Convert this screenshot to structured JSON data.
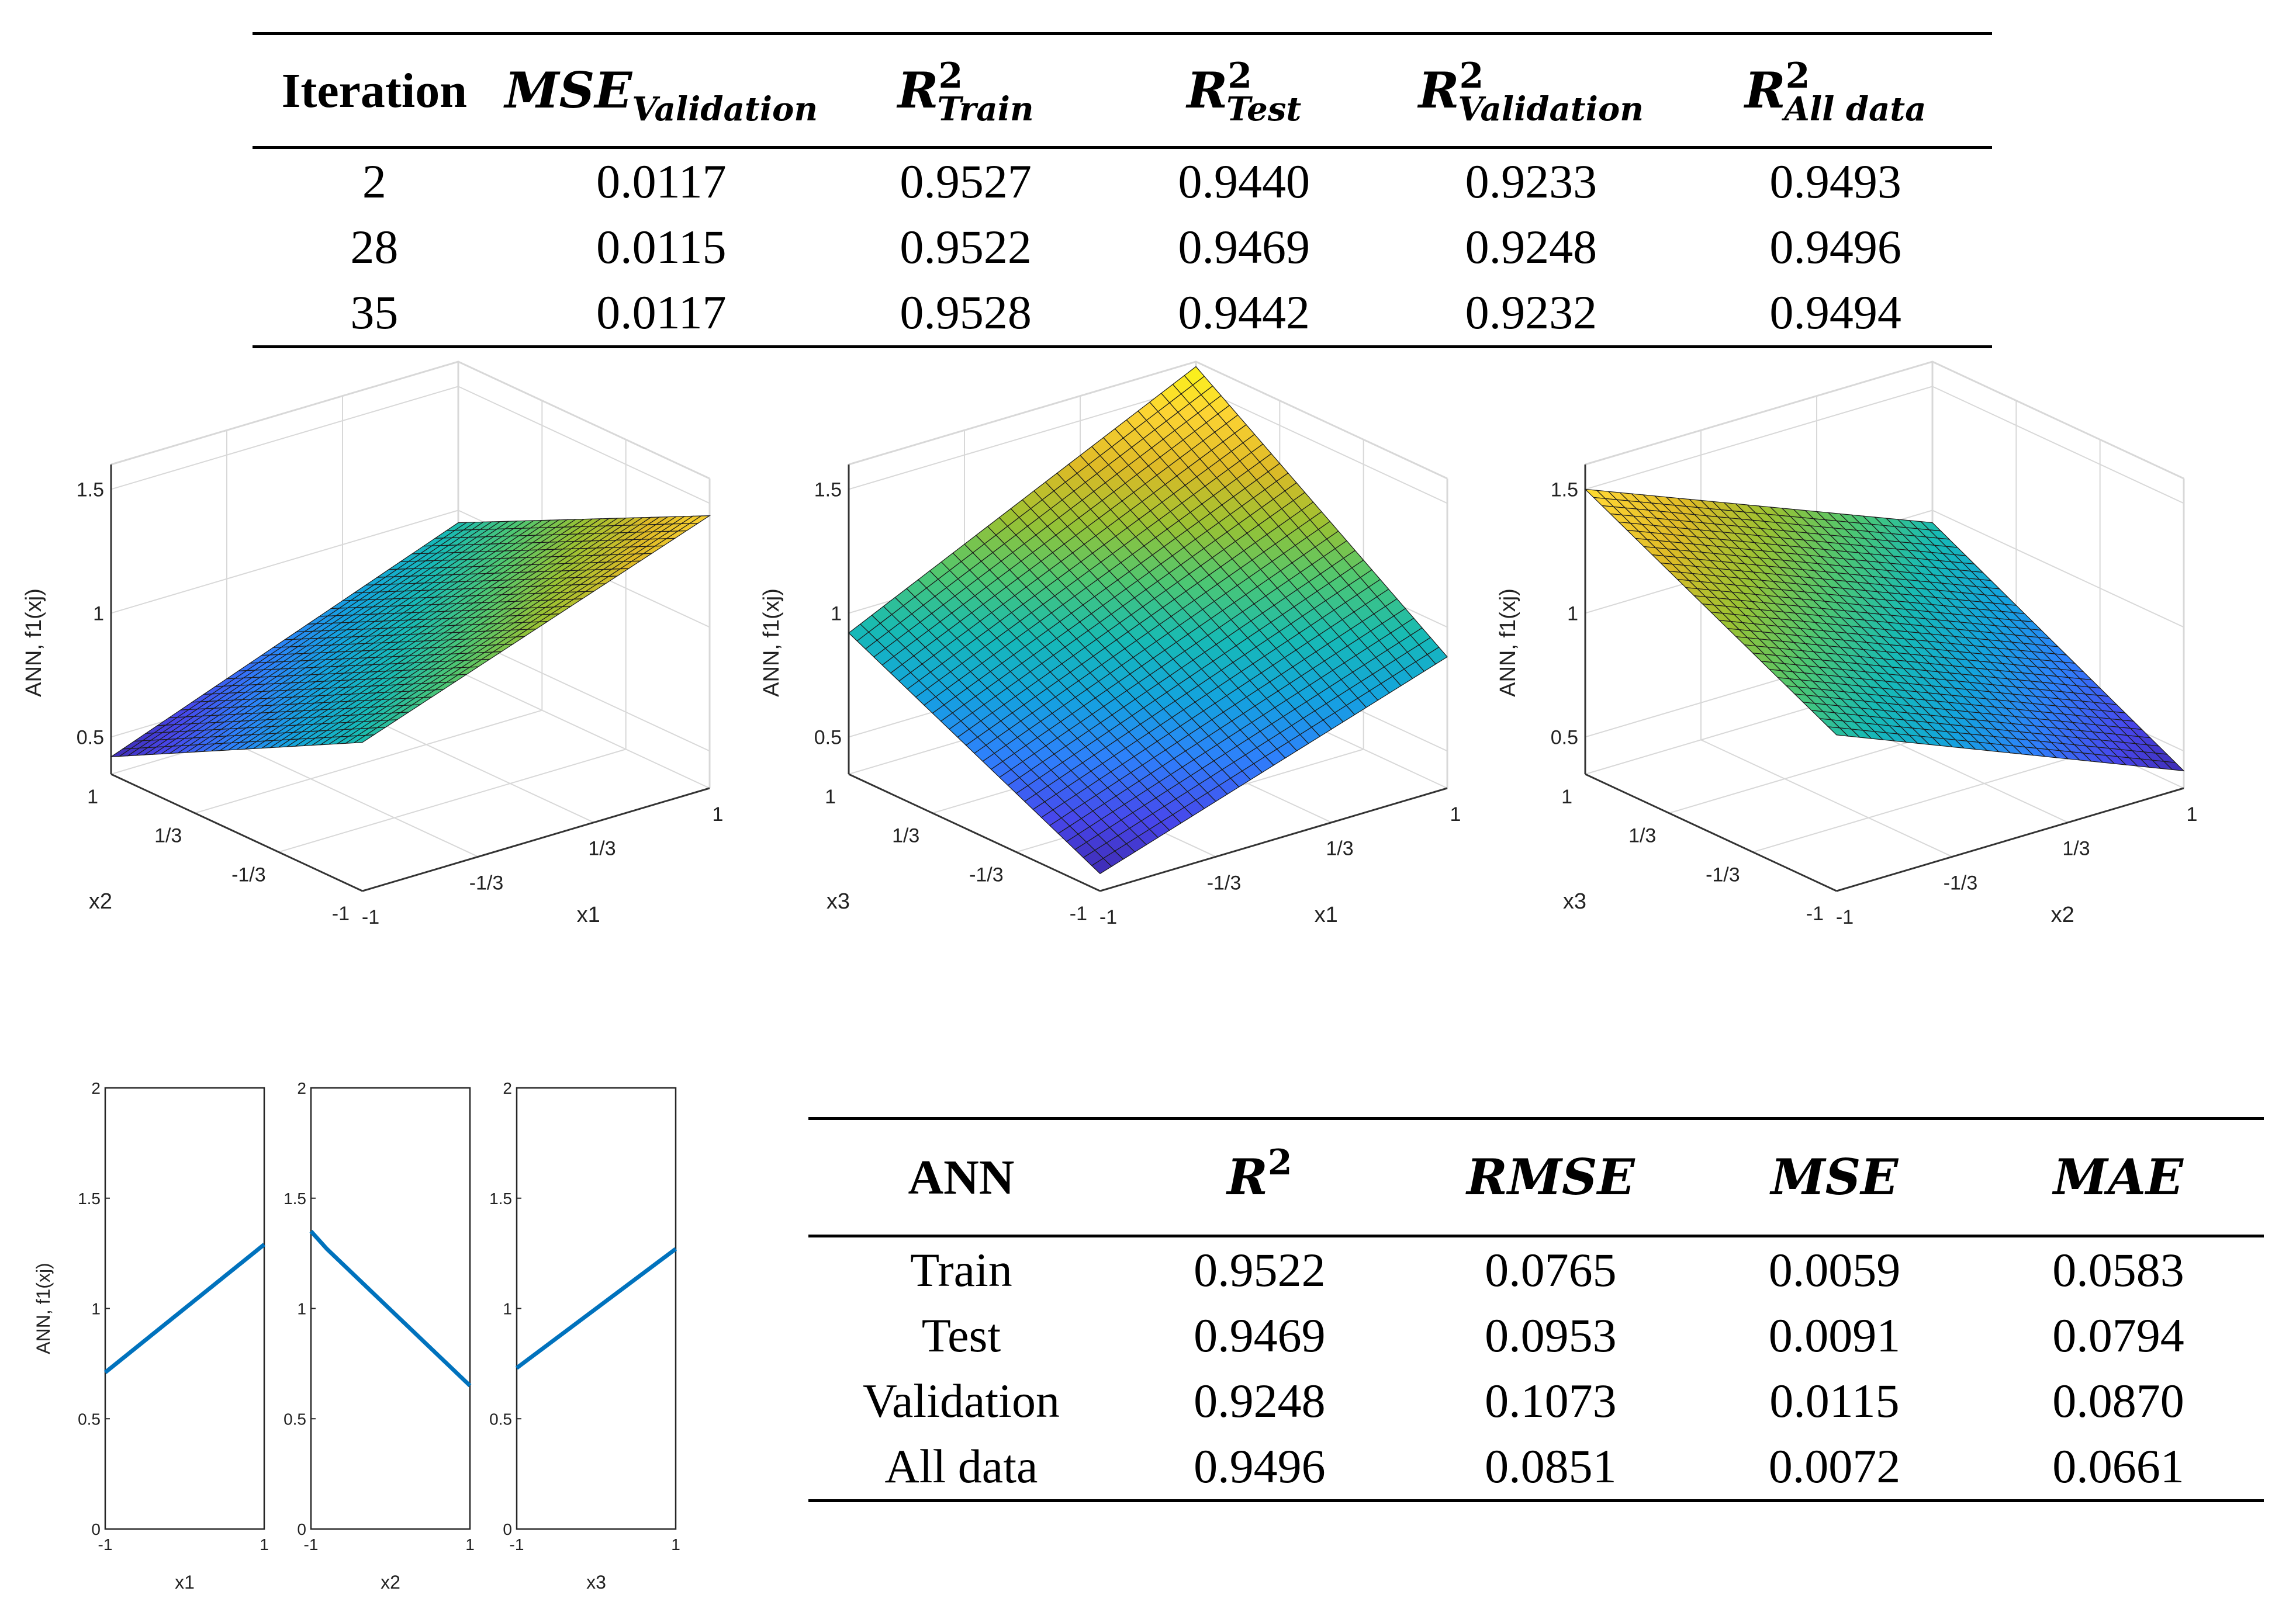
{
  "table_iterations": {
    "headers": {
      "iteration": "Iteration",
      "mse_val": {
        "main": "MSE",
        "sub": "Validation"
      },
      "r2_train": {
        "main": "R",
        "sup": "2",
        "sub": "Train"
      },
      "r2_test": {
        "main": "R",
        "sup": "2",
        "sub": "Test"
      },
      "r2_val": {
        "main": "R",
        "sup": "2",
        "sub": "Validation"
      },
      "r2_all": {
        "main": "R",
        "sup": "2",
        "sub": "All data"
      }
    },
    "rows": [
      [
        "2",
        "0.0117",
        "0.9527",
        "0.9440",
        "0.9233",
        "0.9493"
      ],
      [
        "28",
        "0.0115",
        "0.9522",
        "0.9469",
        "0.9248",
        "0.9496"
      ],
      [
        "35",
        "0.0117",
        "0.9528",
        "0.9442",
        "0.9232",
        "0.9494"
      ]
    ]
  },
  "table_metrics": {
    "headers": {
      "ann": "ANN",
      "r2": {
        "main": "R",
        "sup": "2"
      },
      "rmse": "RMSE",
      "mse": "MSE",
      "mae": "MAE"
    },
    "rows": [
      [
        "Train",
        "0.9522",
        "0.0765",
        "0.0059",
        "0.0583"
      ],
      [
        "Test",
        "0.9469",
        "0.0953",
        "0.0091",
        "0.0794"
      ],
      [
        "Validation",
        "0.9248",
        "0.1073",
        "0.0115",
        "0.0870"
      ],
      [
        "All data",
        "0.9496",
        "0.0851",
        "0.0072",
        "0.0661"
      ]
    ]
  },
  "chart_data": [
    {
      "type": "surface",
      "title": "",
      "zlabel": "ANN, f1(xj)",
      "xlabel": "x1",
      "ylabel": "x2",
      "zticks": [
        "0.5",
        "1",
        "1.5"
      ],
      "x_ticks": [
        "-1",
        "-1/3",
        "1/3",
        "1"
      ],
      "y_ticks": [
        "1",
        "1/3",
        "-1/3",
        "-1"
      ],
      "zlim": [
        0.35,
        1.6
      ],
      "corners": {
        "x-1_y-1": 0.95,
        "x1_y-1": 1.45,
        "x1_y1": 0.95,
        "x-1_y1": 0.42
      },
      "colormap": "parula"
    },
    {
      "type": "surface",
      "title": "",
      "zlabel": "ANN, f1(xj)",
      "xlabel": "x1",
      "ylabel": "x3",
      "zticks": [
        "0.5",
        "1",
        "1.5"
      ],
      "x_ticks": [
        "-1",
        "-1/3",
        "1/3",
        "1"
      ],
      "y_ticks": [
        "1",
        "1/3",
        "-1/3",
        "-1"
      ],
      "zlim": [
        0.35,
        1.6
      ],
      "corners": {
        "x-1_y-1": 0.42,
        "x1_y-1": 0.88,
        "x1_y1": 1.58,
        "x-1_y1": 0.92
      },
      "colormap": "parula"
    },
    {
      "type": "surface",
      "title": "",
      "zlabel": "ANN, f1(xj)",
      "xlabel": "x2",
      "ylabel": "x3",
      "zticks": [
        "0.5",
        "1",
        "1.5"
      ],
      "x_ticks": [
        "-1",
        "-1/3",
        "1/3",
        "1"
      ],
      "y_ticks": [
        "1",
        "1/3",
        "-1/3",
        "-1"
      ],
      "zlim": [
        0.35,
        1.6
      ],
      "corners": {
        "x-1_y-1": 0.98,
        "x1_y-1": 0.42,
        "x1_y1": 0.95,
        "x-1_y1": 1.5
      },
      "colormap": "parula"
    },
    {
      "type": "line",
      "xlabel": "x1",
      "ylabel": "ANN, f1(xj)",
      "x": [
        -1,
        1
      ],
      "values": [
        0.71,
        1.29
      ],
      "xlim": [
        -1,
        1
      ],
      "ylim": [
        0,
        2
      ],
      "xticks": [
        "-1",
        "1"
      ],
      "yticks": [
        "0",
        "0.5",
        "1",
        "1.5",
        "2"
      ],
      "color": "#0072bd"
    },
    {
      "type": "line",
      "xlabel": "x2",
      "ylabel": "",
      "x": [
        -1,
        -0.8,
        1
      ],
      "values": [
        1.35,
        1.27,
        0.65
      ],
      "xlim": [
        -1,
        1
      ],
      "ylim": [
        0,
        2
      ],
      "xticks": [
        "-1",
        "1"
      ],
      "yticks": [
        "0",
        "0.5",
        "1",
        "1.5",
        "2"
      ],
      "color": "#0072bd"
    },
    {
      "type": "line",
      "xlabel": "x3",
      "ylabel": "",
      "x": [
        -1,
        1
      ],
      "values": [
        0.73,
        1.27
      ],
      "xlim": [
        -1,
        1
      ],
      "ylim": [
        0,
        2
      ],
      "xticks": [
        "-1",
        "1"
      ],
      "yticks": [
        "0",
        "0.5",
        "1",
        "1.5",
        "2"
      ],
      "color": "#0072bd"
    }
  ]
}
